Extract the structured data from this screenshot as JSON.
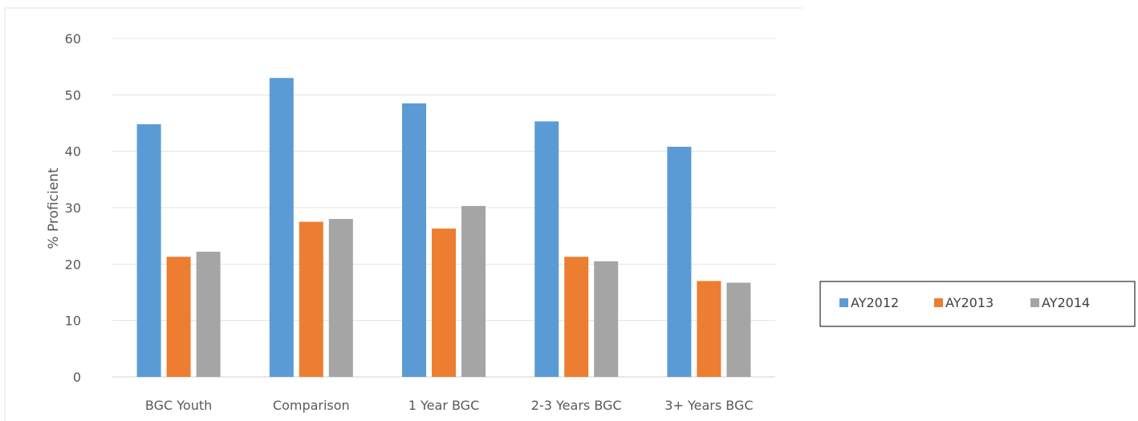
{
  "chart_data": {
    "type": "bar",
    "title": "",
    "xlabel": "",
    "ylabel": "% Proficient",
    "ylim": [
      0,
      60
    ],
    "yticks": [
      0,
      10,
      20,
      30,
      40,
      50,
      60
    ],
    "grid": true,
    "legend_position": "right",
    "categories": [
      "BGC Youth",
      "Comparison",
      "1 Year BGC",
      "2-3 Years BGC",
      "3+ Years BGC"
    ],
    "series": [
      {
        "name": "AY2012",
        "color": "#5B9BD5",
        "values": [
          44.8,
          53.0,
          48.5,
          45.3,
          40.8
        ]
      },
      {
        "name": "AY2013",
        "color": "#ED7D31",
        "values": [
          21.3,
          27.5,
          26.3,
          21.3,
          17.0
        ]
      },
      {
        "name": "AY2014",
        "color": "#A5A5A5",
        "values": [
          22.2,
          28.0,
          30.3,
          20.5,
          16.7
        ]
      }
    ]
  }
}
